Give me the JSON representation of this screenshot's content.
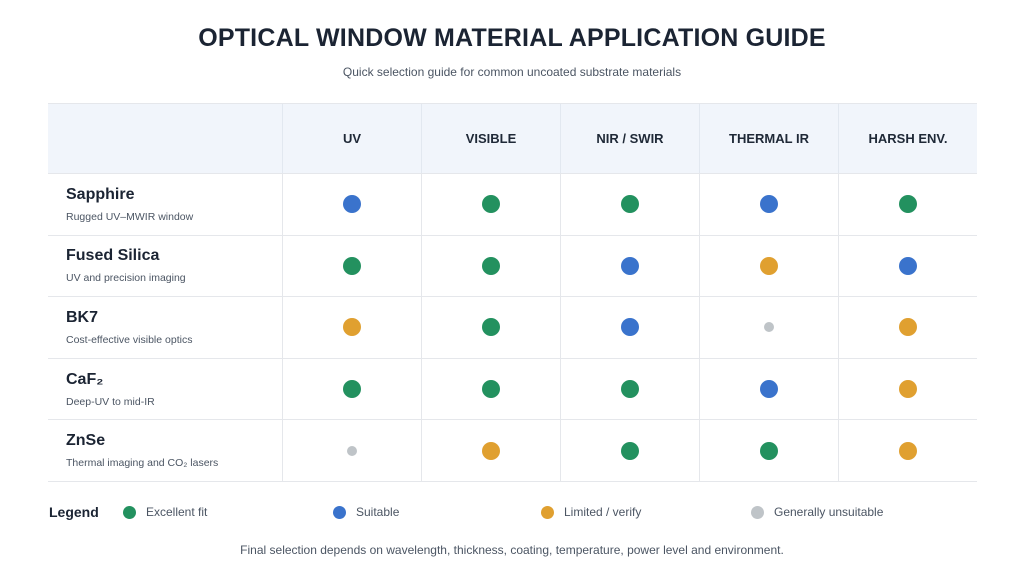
{
  "title": "OPTICAL WINDOW MATERIAL APPLICATION GUIDE",
  "subtitle": "Quick selection guide for common uncoated substrate materials",
  "colors": {
    "excellent": "#23915f",
    "suitable": "#3a73cc",
    "limited": "#e0a030",
    "unsuitable": "#bfc4c8"
  },
  "chart_data": {
    "type": "table",
    "columns": [
      "UV",
      "VISIBLE",
      "NIR / SWIR",
      "THERMAL IR",
      "HARSH ENV."
    ],
    "rows": [
      {
        "name": "Sapphire",
        "desc": "Rugged UV–MWIR window",
        "ratings": [
          "suitable",
          "excellent",
          "excellent",
          "suitable",
          "excellent"
        ]
      },
      {
        "name": "Fused Silica",
        "desc": "UV and precision imaging",
        "ratings": [
          "excellent",
          "excellent",
          "suitable",
          "limited",
          "suitable"
        ]
      },
      {
        "name": "BK7",
        "desc": "Cost-effective visible optics",
        "ratings": [
          "limited",
          "excellent",
          "suitable",
          "unsuitable",
          "limited"
        ]
      },
      {
        "name": "CaF₂",
        "desc": "Deep-UV to mid-IR",
        "ratings": [
          "excellent",
          "excellent",
          "excellent",
          "suitable",
          "limited"
        ]
      },
      {
        "name": "ZnSe",
        "desc": "Thermal imaging and CO₂ lasers",
        "ratings": [
          "unsuitable",
          "limited",
          "excellent",
          "excellent",
          "limited"
        ]
      }
    ]
  },
  "legend": {
    "title": "Legend",
    "items": [
      {
        "key": "excellent",
        "label": "Excellent fit"
      },
      {
        "key": "suitable",
        "label": "Suitable"
      },
      {
        "key": "limited",
        "label": "Limited / verify"
      },
      {
        "key": "unsuitable",
        "label": "Generally unsuitable"
      }
    ]
  },
  "footnote": "Final selection depends on wavelength, thickness, coating, temperature, power level and environment."
}
